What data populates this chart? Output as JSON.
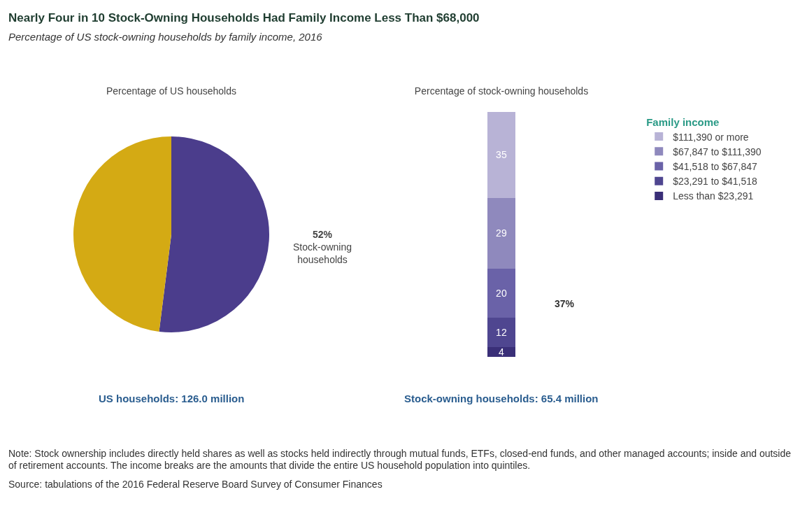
{
  "chart_data": [
    {
      "type": "pie",
      "title": "Nearly Four in 10 Stock-Owning Households Had Family Income Less Than $68,000",
      "subtitle": "Percentage of US stock-owning households by family income, 2016",
      "categories": [
        "Stock-owning households",
        null
      ],
      "values": [
        52,
        48
      ],
      "colors": [
        "#4b3d8c",
        "#d4aa14"
      ],
      "value_labels": [
        "52%",
        null
      ],
      "annotations": [
        "Percentage of US households",
        "US households: 126.0 million"
      ]
    },
    {
      "type": "bar",
      "stacked": true,
      "title": "Percentage of stock-owning households",
      "legend_title": "Family income",
      "legend": "right",
      "data_labels": true,
      "categories": [
        null
      ],
      "series": [
        {
          "name": "Less than $23,291",
          "color": "#3a2f78",
          "values": [
            4
          ]
        },
        {
          "name": "$23,291 to $41,518",
          "color": "#4f4690",
          "values": [
            12
          ]
        },
        {
          "name": "$41,518 to $67,847",
          "color": "#6a62a8",
          "values": [
            20
          ]
        },
        {
          "name": "$67,847 to $111,390",
          "color": "#8f89bd",
          "values": [
            29
          ]
        },
        {
          "name": "$111,390 or more",
          "color": "#b8b3d6",
          "values": [
            35
          ]
        }
      ],
      "annotations": [
        "37%",
        "Stock-owning households: 65.4 million",
        "Note: Stock ownership includes directly held shares as well as stocks held indirectly through mutual funds, ETFs, closed-end funds, and other managed accounts; inside and outside of retirement accounts. The income breaks are the amounts that divide the entire US household population into quintiles.",
        "Source: tabulations of the 2016 Federal Reserve Board Survey of Consumer Finances"
      ]
    }
  ]
}
